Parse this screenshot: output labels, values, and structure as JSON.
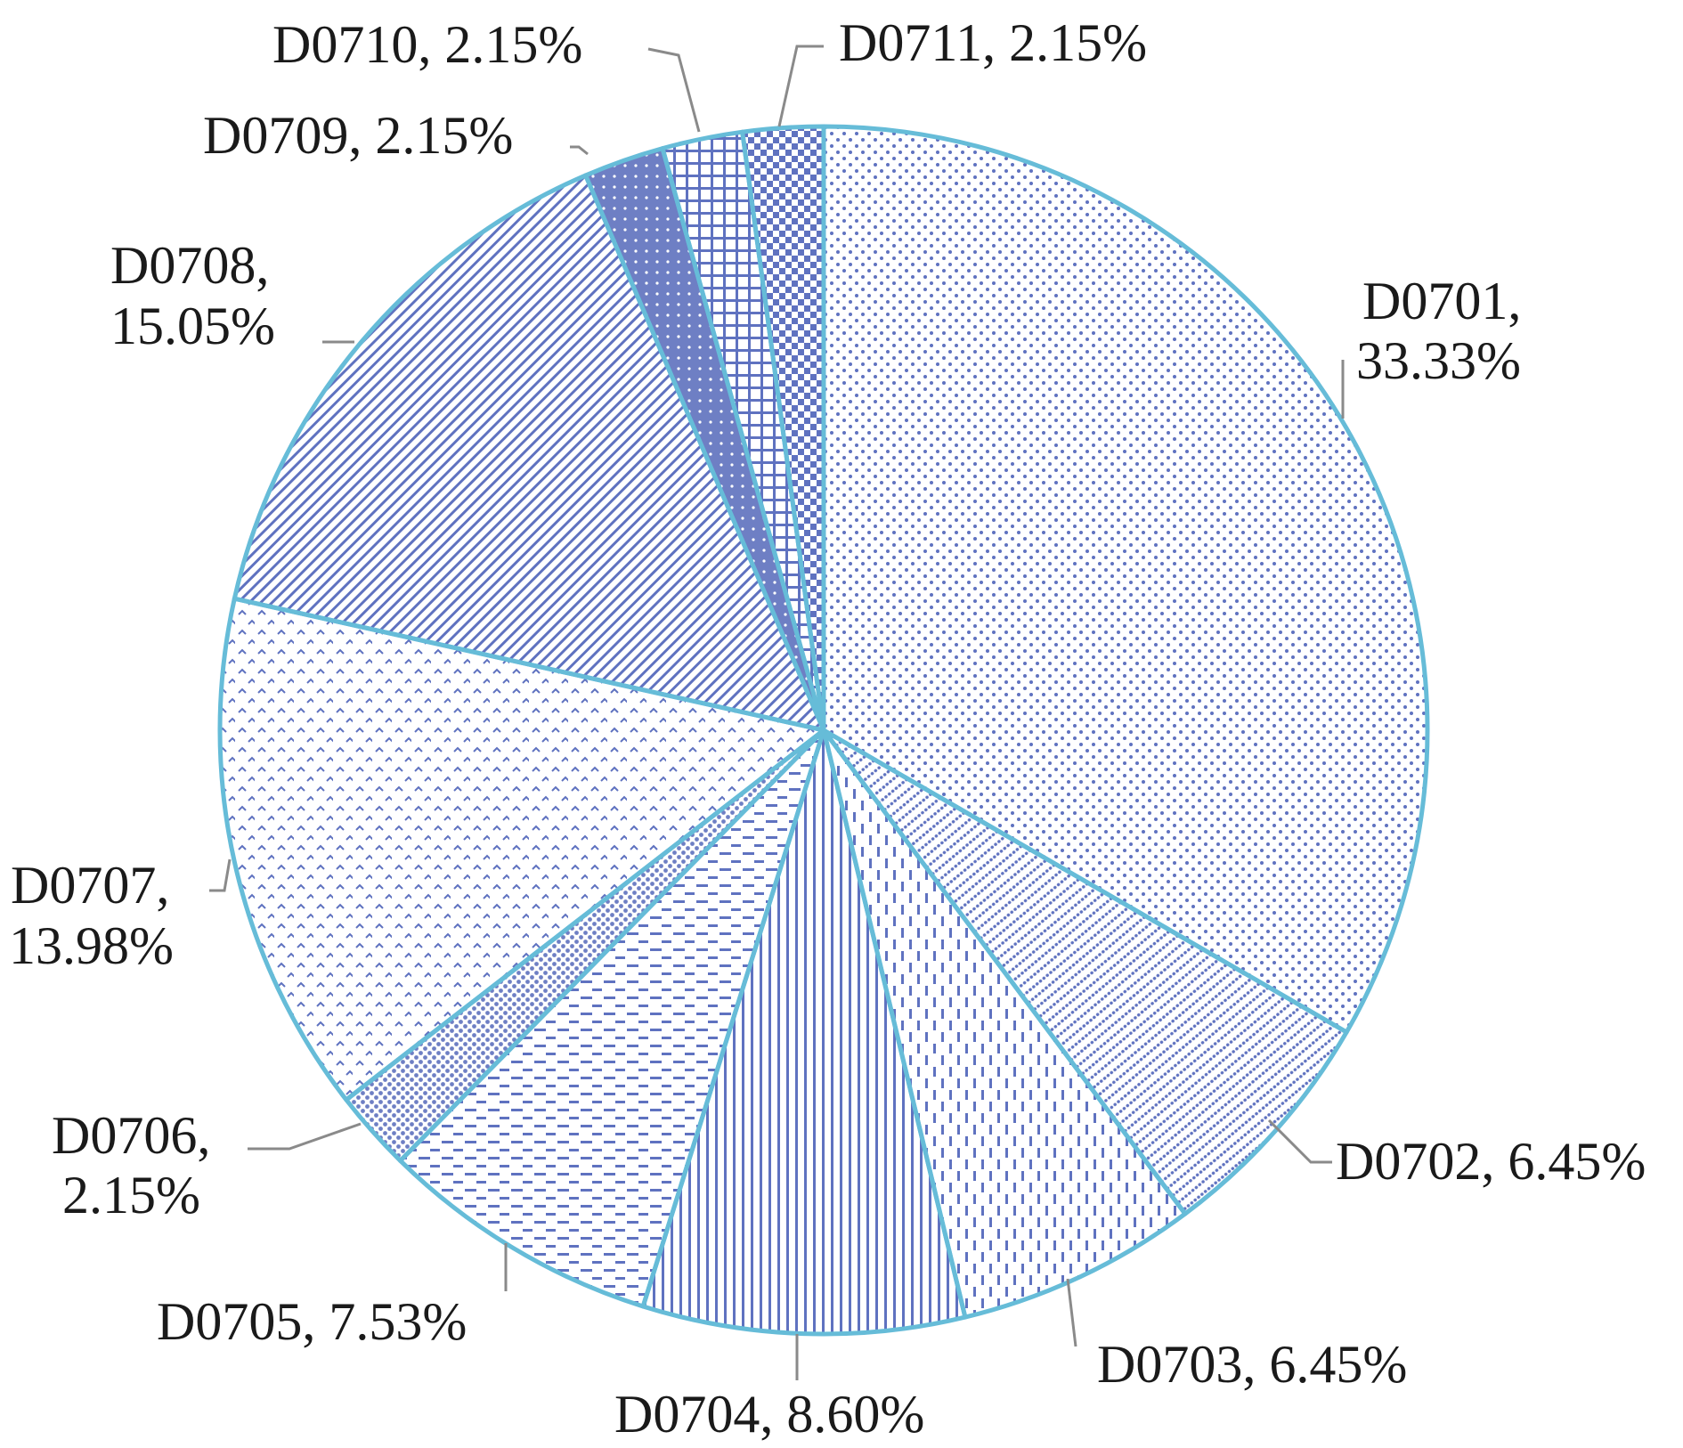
{
  "chart_data": {
    "type": "pie",
    "title": "",
    "legend": "none",
    "colors": {
      "border": "#66bcd8",
      "pattern": "#5f72c0",
      "pattern_dark": "#6e7fc4",
      "leader": "#8a8a8a",
      "text": "#1a1a1a"
    },
    "slices": [
      {
        "label": "D0701",
        "value": 33.33,
        "value_text": "33.33%",
        "pattern": "fine-dots"
      },
      {
        "label": "D0702",
        "value": 6.45,
        "value_text": "6.45%",
        "pattern": "diagonal-dots"
      },
      {
        "label": "D0703",
        "value": 6.45,
        "value_text": "6.45%",
        "pattern": "vertical-dashes"
      },
      {
        "label": "D0704",
        "value": 8.6,
        "value_text": "8.60%",
        "pattern": "vertical-lines"
      },
      {
        "label": "D0705",
        "value": 7.53,
        "value_text": "7.53%",
        "pattern": "horizontal-dashes"
      },
      {
        "label": "D0706",
        "value": 2.15,
        "value_text": "2.15%",
        "pattern": "dense-dots"
      },
      {
        "label": "D0707",
        "value": 13.98,
        "value_text": "13.98%",
        "pattern": "chevrons"
      },
      {
        "label": "D0708",
        "value": 15.05,
        "value_text": "15.05%",
        "pattern": "diagonal-stripes"
      },
      {
        "label": "D0709",
        "value": 2.15,
        "value_text": "2.15%",
        "pattern": "solid-dots"
      },
      {
        "label": "D0710",
        "value": 2.15,
        "value_text": "2.15%",
        "pattern": "grid"
      },
      {
        "label": "D0711",
        "value": 2.15,
        "value_text": "2.15%",
        "pattern": "checker"
      }
    ]
  }
}
